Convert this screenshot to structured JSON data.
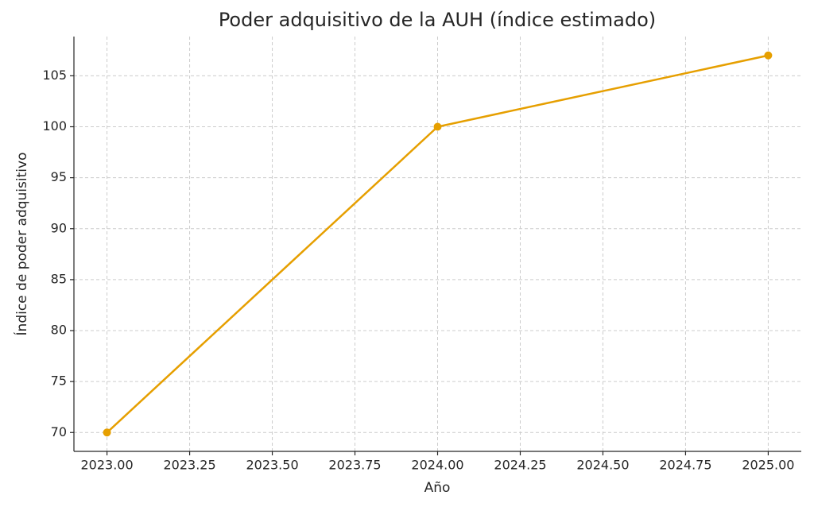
{
  "chart_data": {
    "type": "line",
    "title": "Poder adquisitivo de la AUH (índice estimado)",
    "xlabel": "Año",
    "ylabel": "Índice de poder adquisitivo",
    "x": [
      2023,
      2024,
      2025
    ],
    "values": [
      70,
      100,
      107
    ],
    "color": "#e69f00",
    "xlim": [
      2022.9,
      2025.1
    ],
    "xticks": [
      {
        "value": 2023,
        "label": "2023.00"
      },
      {
        "value": 2023.25,
        "label": "2023.25"
      },
      {
        "value": 2023.5,
        "label": "2023.50"
      },
      {
        "value": 2023.75,
        "label": "2023.75"
      },
      {
        "value": 2024,
        "label": "2024.00"
      },
      {
        "value": 2024.25,
        "label": "2024.25"
      },
      {
        "value": 2024.5,
        "label": "2024.50"
      },
      {
        "value": 2024.75,
        "label": "2024.75"
      },
      {
        "value": 2025,
        "label": "2025.00"
      }
    ],
    "ylim": [
      68.15,
      108.85
    ],
    "yticks": [
      70,
      75,
      80,
      85,
      90,
      95,
      100,
      105
    ],
    "grid": true
  }
}
